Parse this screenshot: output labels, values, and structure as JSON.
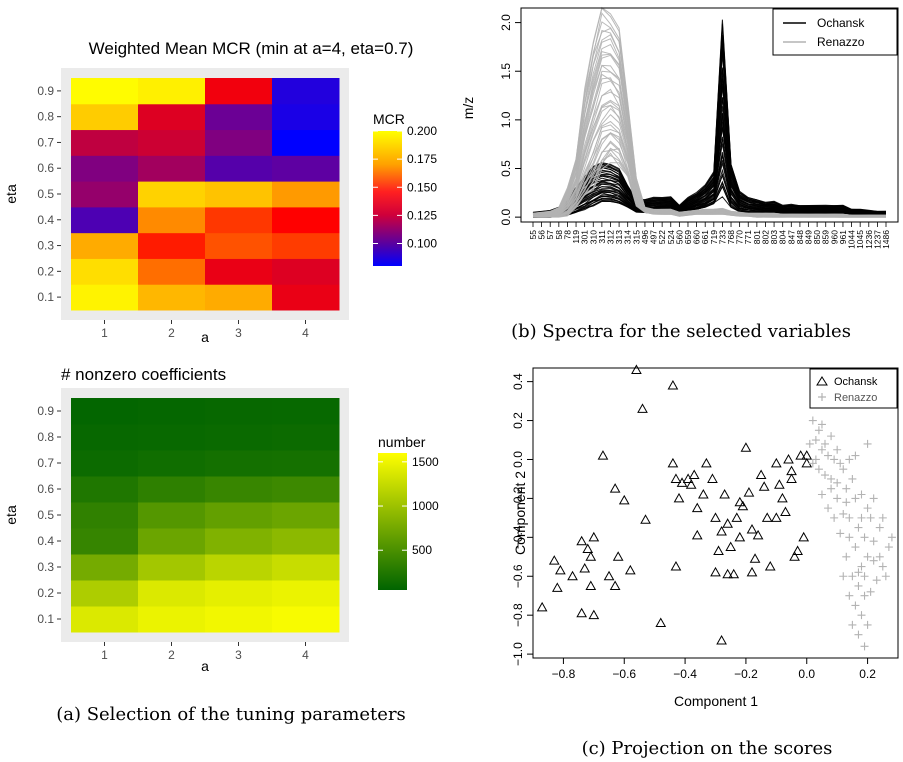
{
  "captions": {
    "a": "(a) Selection of the tuning parameters",
    "b": "(b) Spectra for the selected variables",
    "c": "(c) Projection on the scores"
  },
  "chart_data": [
    {
      "type": "heatmap",
      "title": "Weighted Mean MCR (min at a=4, eta=0.7)",
      "xlabel": "a",
      "ylabel": "eta",
      "x": [
        "1",
        "2",
        "3",
        "4"
      ],
      "y": [
        "0.1",
        "0.2",
        "0.3",
        "0.4",
        "0.5",
        "0.6",
        "0.7",
        "0.8",
        "0.9"
      ],
      "values": [
        [
          0.196,
          0.176,
          0.172,
          0.135
        ],
        [
          0.189,
          0.16,
          0.135,
          0.132
        ],
        [
          0.172,
          0.145,
          0.155,
          0.151
        ],
        [
          0.098,
          0.165,
          0.15,
          0.14
        ],
        [
          0.115,
          0.185,
          0.18,
          0.168
        ],
        [
          0.11,
          0.118,
          0.1,
          0.102
        ],
        [
          0.125,
          0.128,
          0.11,
          0.08
        ],
        [
          0.183,
          0.132,
          0.105,
          0.086
        ],
        [
          0.199,
          0.195,
          0.137,
          0.088
        ]
      ],
      "legend": {
        "title": "MCR",
        "ticks": [
          0.1,
          0.125,
          0.15,
          0.175,
          0.2
        ],
        "tick_labels": [
          "0.100",
          "0.125",
          "0.150",
          "0.175",
          "0.200"
        ],
        "min": 0.08,
        "max": 0.2
      },
      "colors": [
        "#0000ff",
        "#800080",
        "#ff0000",
        "#ffa500",
        "#ffff00"
      ]
    },
    {
      "type": "heatmap",
      "title": "# nonzero coefficients",
      "xlabel": "a",
      "ylabel": "eta",
      "x": [
        "1",
        "2",
        "3",
        "4"
      ],
      "y": [
        "0.1",
        "0.2",
        "0.3",
        "0.4",
        "0.5",
        "0.6",
        "0.7",
        "0.8",
        "0.9"
      ],
      "values": [
        [
          1380,
          1480,
          1520,
          1560
        ],
        [
          1100,
          1380,
          1440,
          1480
        ],
        [
          760,
          1040,
          1180,
          1260
        ],
        [
          380,
          700,
          830,
          900
        ],
        [
          340,
          560,
          650,
          700
        ],
        [
          240,
          330,
          390,
          420
        ],
        [
          120,
          150,
          170,
          180
        ],
        [
          90,
          100,
          110,
          120
        ],
        [
          70,
          80,
          90,
          95
        ]
      ],
      "legend": {
        "title": "number",
        "ticks": [
          500,
          1000,
          1500
        ],
        "tick_labels": [
          "500",
          "1000",
          "1500"
        ],
        "min": 50,
        "max": 1600
      },
      "colors": [
        "#006400",
        "#ffff00"
      ]
    },
    {
      "type": "line",
      "ylabel": "m/z",
      "categories": [
        "55",
        "56",
        "57",
        "58",
        "78",
        "119",
        "301",
        "310",
        "311",
        "312",
        "313",
        "314",
        "315",
        "496",
        "497",
        "522",
        "524",
        "560",
        "659",
        "660",
        "661",
        "719",
        "733",
        "768",
        "770",
        "771",
        "801",
        "802",
        "803",
        "804",
        "847",
        "848",
        "849",
        "850",
        "859",
        "960",
        "961",
        "1044",
        "1045",
        "1236",
        "1237",
        "1486"
      ],
      "ylim": [
        -0.05,
        2.15
      ],
      "yticks": [
        0.0,
        0.5,
        1.0,
        1.5,
        2.0
      ],
      "ytick_labels": [
        "0.0",
        "0.5",
        "1.0",
        "1.5",
        "2.0"
      ],
      "legend": {
        "position": "top-right"
      },
      "series": [
        {
          "name": "Ochansk",
          "color": "#000000",
          "count": 40,
          "min": [
            0.0,
            0.0,
            0.0,
            0.01,
            0.02,
            0.05,
            0.08,
            0.12,
            0.16,
            0.16,
            0.14,
            0.1,
            0.05,
            0.05,
            0.04,
            0.06,
            0.06,
            0.02,
            0.05,
            0.08,
            0.1,
            0.14,
            0.25,
            0.1,
            0.05,
            0.04,
            0.03,
            0.03,
            0.03,
            0.02,
            0.02,
            0.02,
            0.02,
            0.02,
            0.02,
            0.02,
            0.02,
            0.01,
            0.01,
            0.01,
            0.01,
            0.01
          ],
          "max": [
            0.05,
            0.06,
            0.07,
            0.1,
            0.18,
            0.3,
            0.42,
            0.52,
            0.57,
            0.55,
            0.5,
            0.32,
            0.18,
            0.18,
            0.2,
            0.2,
            0.21,
            0.12,
            0.2,
            0.25,
            0.33,
            0.46,
            2.07,
            0.55,
            0.26,
            0.2,
            0.18,
            0.15,
            0.16,
            0.12,
            0.13,
            0.12,
            0.12,
            0.12,
            0.12,
            0.12,
            0.12,
            0.08,
            0.08,
            0.07,
            0.06,
            0.06
          ]
        },
        {
          "name": "Renazzo",
          "color": "#b3b3b3",
          "count": 40,
          "min": [
            0.0,
            0.0,
            0.0,
            0.0,
            0.02,
            0.1,
            0.2,
            0.3,
            0.5,
            0.6,
            0.55,
            0.4,
            0.12,
            0.05,
            0.03,
            0.03,
            0.03,
            0.01,
            0.02,
            0.03,
            0.03,
            0.03,
            0.03,
            0.02,
            0.01,
            0.01,
            0.0,
            0.0,
            0.0,
            0.0,
            0.0,
            0.0,
            0.0,
            0.0,
            0.0,
            0.0,
            0.0,
            0.0,
            0.0,
            0.0,
            0.0,
            0.0
          ],
          "max": [
            0.04,
            0.05,
            0.06,
            0.1,
            0.3,
            0.6,
            1.3,
            1.8,
            2.15,
            2.12,
            1.95,
            1.2,
            0.4,
            0.1,
            0.08,
            0.08,
            0.08,
            0.05,
            0.06,
            0.07,
            0.08,
            0.08,
            0.09,
            0.06,
            0.05,
            0.04,
            0.04,
            0.04,
            0.04,
            0.03,
            0.03,
            0.03,
            0.03,
            0.03,
            0.03,
            0.03,
            0.03,
            0.02,
            0.02,
            0.02,
            0.02,
            0.02
          ]
        }
      ]
    },
    {
      "type": "scatter",
      "xlabel": "Component 1",
      "ylabel": "Component 2",
      "xlim": [
        -0.9,
        0.3
      ],
      "ylim": [
        -1.02,
        0.47
      ],
      "xticks": [
        -0.8,
        -0.6,
        -0.4,
        -0.2,
        0.0,
        0.2
      ],
      "xtick_labels": [
        "−0.8",
        "−0.6",
        "−0.4",
        "−0.2",
        "0.0",
        "0.2"
      ],
      "yticks": [
        -1.0,
        -0.8,
        -0.6,
        -0.4,
        -0.2,
        0.0,
        0.2,
        0.4
      ],
      "ytick_labels": [
        "−1.0",
        "−0.8",
        "−0.6",
        "−0.4",
        "−0.2",
        "0.0",
        "0.2",
        "0.4"
      ],
      "legend": {
        "position": "top-right"
      },
      "series": [
        {
          "name": "Ochansk",
          "marker": "triangle",
          "color": "#000000",
          "points": [
            [
              -0.56,
              0.46
            ],
            [
              -0.54,
              0.26
            ],
            [
              -0.44,
              0.38
            ],
            [
              -0.67,
              0.02
            ],
            [
              -0.83,
              -0.52
            ],
            [
              -0.81,
              -0.57
            ],
            [
              -0.82,
              -0.66
            ],
            [
              -0.87,
              -0.76
            ],
            [
              -0.74,
              -0.42
            ],
            [
              -0.72,
              -0.46
            ],
            [
              -0.71,
              -0.5
            ],
            [
              -0.7,
              -0.4
            ],
            [
              -0.77,
              -0.6
            ],
            [
              -0.73,
              -0.56
            ],
            [
              -0.71,
              -0.65
            ],
            [
              -0.74,
              -0.79
            ],
            [
              -0.7,
              -0.8
            ],
            [
              -0.65,
              -0.6
            ],
            [
              -0.63,
              -0.65
            ],
            [
              -0.62,
              -0.5
            ],
            [
              -0.63,
              -0.15
            ],
            [
              -0.6,
              -0.21
            ],
            [
              -0.58,
              -0.57
            ],
            [
              -0.53,
              -0.31
            ],
            [
              -0.48,
              -0.84
            ],
            [
              -0.43,
              -0.55
            ],
            [
              -0.43,
              -0.1
            ],
            [
              -0.41,
              -0.12
            ],
            [
              -0.39,
              -0.1
            ],
            [
              -0.38,
              -0.13
            ],
            [
              -0.37,
              -0.08
            ],
            [
              -0.36,
              -0.25
            ],
            [
              -0.34,
              -0.18
            ],
            [
              -0.33,
              -0.02
            ],
            [
              -0.31,
              -0.1
            ],
            [
              -0.3,
              -0.3
            ],
            [
              -0.29,
              -0.47
            ],
            [
              -0.28,
              -0.37
            ],
            [
              -0.27,
              -0.18
            ],
            [
              -0.26,
              -0.33
            ],
            [
              -0.25,
              -0.45
            ],
            [
              -0.24,
              -0.59
            ],
            [
              -0.23,
              -0.3
            ],
            [
              -0.22,
              -0.4
            ],
            [
              -0.21,
              -0.24
            ],
            [
              -0.2,
              0.06
            ],
            [
              -0.19,
              -0.17
            ],
            [
              -0.18,
              -0.36
            ],
            [
              -0.17,
              -0.51
            ],
            [
              -0.16,
              -0.39
            ],
            [
              -0.14,
              -0.14
            ],
            [
              -0.13,
              -0.3
            ],
            [
              -0.12,
              -0.55
            ],
            [
              -0.1,
              -0.02
            ],
            [
              -0.09,
              -0.13
            ],
            [
              -0.08,
              -0.2
            ],
            [
              -0.07,
              -0.27
            ],
            [
              -0.06,
              0.0
            ],
            [
              -0.05,
              -0.1
            ],
            [
              -0.04,
              -0.5
            ],
            [
              -0.03,
              -0.47
            ],
            [
              -0.02,
              0.02
            ],
            [
              -0.01,
              -0.4
            ],
            [
              0.0,
              -0.02
            ],
            [
              0.0,
              0.02
            ],
            [
              -0.28,
              -0.93
            ],
            [
              -0.36,
              -0.39
            ],
            [
              -0.44,
              -0.02
            ],
            [
              -0.22,
              -0.22
            ],
            [
              -0.15,
              -0.08
            ],
            [
              -0.1,
              -0.3
            ],
            [
              -0.42,
              -0.2
            ],
            [
              -0.3,
              -0.58
            ],
            [
              -0.18,
              -0.58
            ],
            [
              -0.05,
              -0.06
            ],
            [
              -0.26,
              -0.59
            ]
          ]
        },
        {
          "name": "Renazzo",
          "marker": "plus",
          "color": "#b3b3b3",
          "points": [
            [
              0.02,
              0.2
            ],
            [
              0.04,
              0.15
            ],
            [
              0.03,
              0.1
            ],
            [
              0.06,
              0.08
            ],
            [
              0.08,
              0.12
            ],
            [
              0.05,
              0.05
            ],
            [
              0.07,
              0.02
            ],
            [
              0.09,
              0.0
            ],
            [
              0.1,
              0.05
            ],
            [
              0.02,
              -0.02
            ],
            [
              0.04,
              -0.05
            ],
            [
              0.06,
              -0.08
            ],
            [
              0.08,
              -0.1
            ],
            [
              0.1,
              -0.12
            ],
            [
              0.12,
              -0.05
            ],
            [
              0.13,
              -0.15
            ],
            [
              0.15,
              -0.1
            ],
            [
              0.16,
              -0.2
            ],
            [
              0.18,
              -0.18
            ],
            [
              0.2,
              -0.25
            ],
            [
              0.1,
              -0.2
            ],
            [
              0.12,
              -0.28
            ],
            [
              0.14,
              -0.3
            ],
            [
              0.17,
              -0.35
            ],
            [
              0.19,
              -0.4
            ],
            [
              0.21,
              -0.3
            ],
            [
              0.22,
              -0.42
            ],
            [
              0.24,
              -0.5
            ],
            [
              0.25,
              -0.55
            ],
            [
              0.26,
              -0.6
            ],
            [
              0.27,
              -0.45
            ],
            [
              0.2,
              -0.5
            ],
            [
              0.18,
              -0.55
            ],
            [
              0.16,
              -0.45
            ],
            [
              0.14,
              -0.4
            ],
            [
              0.13,
              -0.5
            ],
            [
              0.15,
              -0.6
            ],
            [
              0.17,
              -0.65
            ],
            [
              0.19,
              -0.7
            ],
            [
              0.16,
              -0.75
            ],
            [
              0.18,
              -0.8
            ],
            [
              0.2,
              -0.85
            ],
            [
              0.17,
              -0.9
            ],
            [
              0.19,
              -0.96
            ],
            [
              0.14,
              -0.7
            ],
            [
              0.12,
              -0.6
            ],
            [
              0.11,
              -0.38
            ],
            [
              0.09,
              -0.3
            ],
            [
              0.07,
              -0.25
            ],
            [
              0.05,
              -0.18
            ],
            [
              0.22,
              -0.2
            ],
            [
              0.24,
              -0.35
            ],
            [
              0.28,
              -0.4
            ],
            [
              0.23,
              -0.62
            ],
            [
              0.21,
              -0.68
            ],
            [
              0.15,
              -0.85
            ],
            [
              0.2,
              0.08
            ],
            [
              0.16,
              0.02
            ],
            [
              0.11,
              -0.02
            ],
            [
              0.08,
              -0.15
            ],
            [
              0.22,
              -0.52
            ],
            [
              0.25,
              -0.3
            ],
            [
              0.18,
              -0.3
            ],
            [
              0.13,
              -0.22
            ],
            [
              0.03,
              0.0
            ],
            [
              0.01,
              0.08
            ],
            [
              0.05,
              0.18
            ],
            [
              0.14,
              0.0
            ],
            [
              0.19,
              -0.6
            ],
            [
              0.17,
              -0.58
            ]
          ]
        }
      ]
    }
  ]
}
